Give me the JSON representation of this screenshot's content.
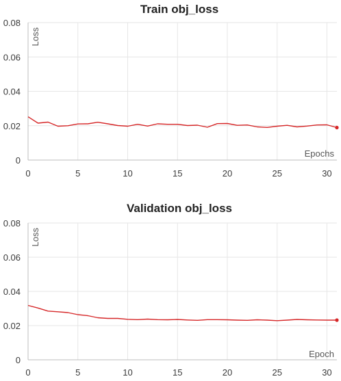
{
  "chart_data": [
    {
      "type": "line",
      "title": "Train obj_loss",
      "xlabel": "Epochs",
      "ylabel": "Loss",
      "xlim": [
        0,
        31
      ],
      "ylim": [
        0,
        0.08
      ],
      "x_ticks": [
        "0",
        "5",
        "10",
        "15",
        "20",
        "25",
        "30"
      ],
      "y_ticks": [
        "0",
        "0.02",
        "0.04",
        "0.06",
        "0.08"
      ],
      "grid": true,
      "line_color": "#d62728",
      "series": [
        {
          "x": [
            0,
            1,
            2,
            3,
            4,
            5,
            6,
            7,
            8,
            9,
            10,
            11,
            12,
            13,
            14,
            15,
            16,
            17,
            18,
            19,
            20,
            21,
            22,
            23,
            24,
            25,
            26,
            27,
            28,
            29,
            30,
            31
          ],
          "values": [
            0.0252,
            0.0215,
            0.0221,
            0.0197,
            0.02,
            0.021,
            0.0211,
            0.022,
            0.0211,
            0.0201,
            0.0197,
            0.0208,
            0.0198,
            0.0211,
            0.0208,
            0.0208,
            0.0201,
            0.0203,
            0.0191,
            0.0212,
            0.0213,
            0.0202,
            0.0204,
            0.0193,
            0.019,
            0.0197,
            0.0202,
            0.0193,
            0.0198,
            0.0204,
            0.0205,
            0.0189
          ]
        }
      ]
    },
    {
      "type": "line",
      "title": "Validation obj_loss",
      "xlabel": "Epoch",
      "ylabel": "Loss",
      "xlim": [
        0,
        31
      ],
      "ylim": [
        0,
        0.08
      ],
      "x_ticks": [
        "0",
        "5",
        "10",
        "15",
        "20",
        "25",
        "30"
      ],
      "y_ticks": [
        "0",
        "0.02",
        "0.04",
        "0.06",
        "0.08"
      ],
      "grid": true,
      "line_color": "#d62728",
      "series": [
        {
          "x": [
            0,
            1,
            2,
            3,
            4,
            5,
            6,
            7,
            8,
            9,
            10,
            11,
            12,
            13,
            14,
            15,
            16,
            17,
            18,
            19,
            20,
            21,
            22,
            23,
            24,
            25,
            26,
            27,
            28,
            29,
            30,
            31
          ],
          "values": [
            0.0318,
            0.0303,
            0.0285,
            0.0281,
            0.0276,
            0.0264,
            0.0258,
            0.0246,
            0.0242,
            0.0242,
            0.0237,
            0.0235,
            0.0238,
            0.0235,
            0.0234,
            0.0236,
            0.0233,
            0.0231,
            0.0235,
            0.0235,
            0.0234,
            0.0232,
            0.0231,
            0.0234,
            0.0232,
            0.0229,
            0.0232,
            0.0236,
            0.0234,
            0.0233,
            0.0232,
            0.0232
          ]
        }
      ]
    }
  ]
}
